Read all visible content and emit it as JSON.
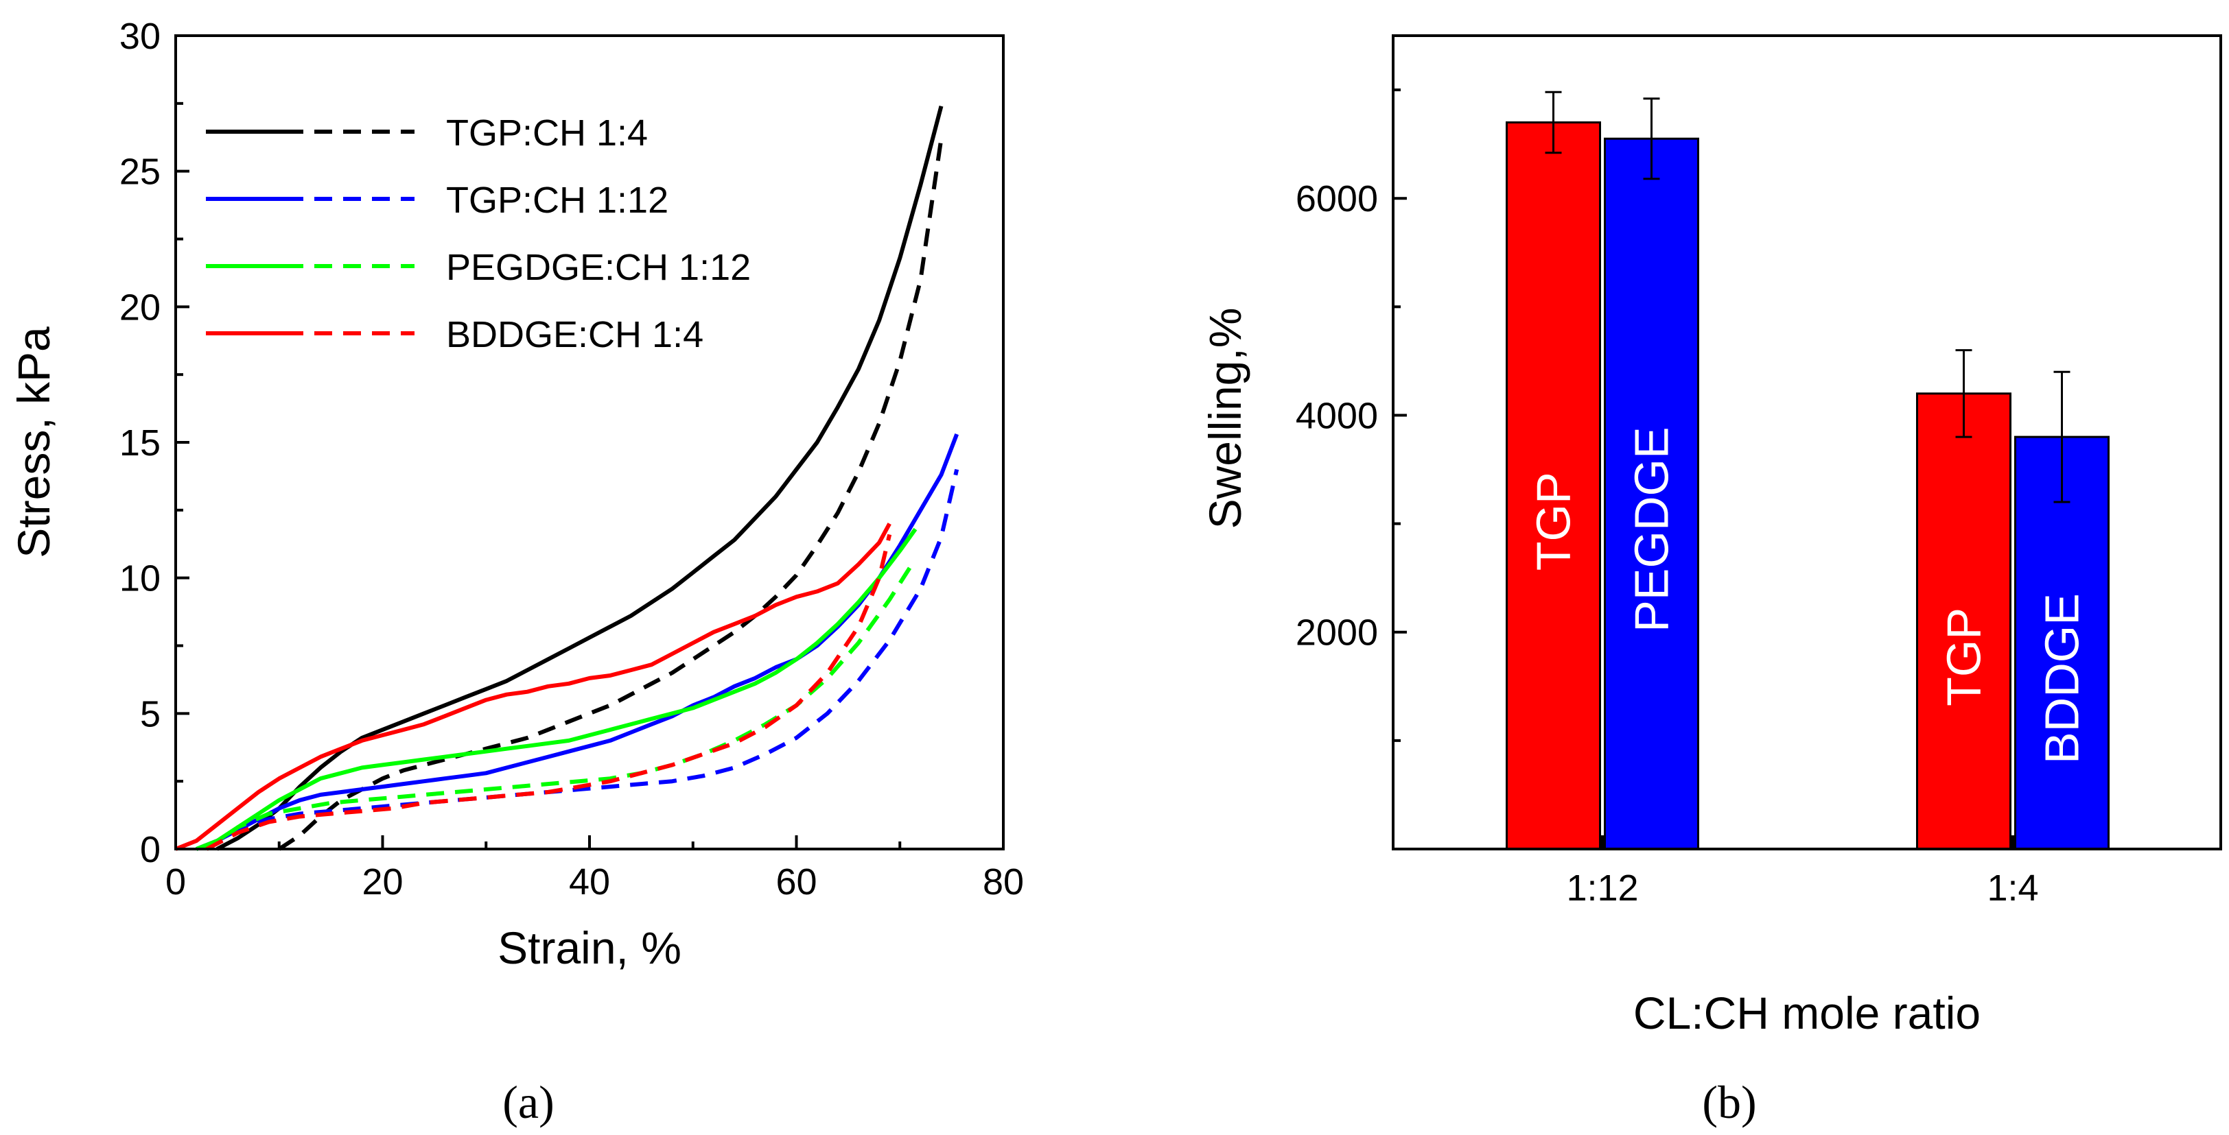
{
  "chart_data": [
    {
      "type": "line",
      "panel_label": "(a)",
      "xlabel": "Strain, %",
      "ylabel": "Stress, kPa",
      "xlim": [
        0,
        80
      ],
      "ylim": [
        0,
        30
      ],
      "xticks": [
        0,
        20,
        40,
        60,
        80
      ],
      "yticks": [
        0,
        5,
        10,
        15,
        20,
        25,
        30
      ],
      "grid": false,
      "legend_position": "top-left",
      "series": [
        {
          "name": "TGP:CH 1:4",
          "style": "solid",
          "color": "#000000",
          "points": [
            [
              4,
              0
            ],
            [
              6,
              0.4
            ],
            [
              8,
              0.9
            ],
            [
              10,
              1.5
            ],
            [
              12,
              2.3
            ],
            [
              14,
              3.0
            ],
            [
              16,
              3.6
            ],
            [
              18,
              4.1
            ],
            [
              20,
              4.4
            ],
            [
              22,
              4.7
            ],
            [
              24,
              5.0
            ],
            [
              26,
              5.3
            ],
            [
              28,
              5.6
            ],
            [
              30,
              5.9
            ],
            [
              32,
              6.2
            ],
            [
              34,
              6.6
            ],
            [
              36,
              7.0
            ],
            [
              38,
              7.4
            ],
            [
              40,
              7.8
            ],
            [
              42,
              8.2
            ],
            [
              44,
              8.6
            ],
            [
              46,
              9.1
            ],
            [
              48,
              9.6
            ],
            [
              50,
              10.2
            ],
            [
              52,
              10.8
            ],
            [
              54,
              11.4
            ],
            [
              56,
              12.2
            ],
            [
              58,
              13.0
            ],
            [
              60,
              14.0
            ],
            [
              62,
              15.0
            ],
            [
              64,
              16.3
            ],
            [
              66,
              17.7
            ],
            [
              68,
              19.5
            ],
            [
              70,
              21.8
            ],
            [
              72,
              24.5
            ],
            [
              74,
              27.4
            ]
          ]
        },
        {
          "name": "TGP:CH 1:4",
          "style": "dashed",
          "color": "#000000",
          "points": [
            [
              10,
              0
            ],
            [
              12,
              0.5
            ],
            [
              14,
              1.2
            ],
            [
              16,
              1.8
            ],
            [
              18,
              2.2
            ],
            [
              20,
              2.6
            ],
            [
              22,
              2.9
            ],
            [
              24,
              3.1
            ],
            [
              26,
              3.3
            ],
            [
              28,
              3.5
            ],
            [
              30,
              3.7
            ],
            [
              32,
              3.9
            ],
            [
              34,
              4.1
            ],
            [
              36,
              4.4
            ],
            [
              38,
              4.7
            ],
            [
              40,
              5.0
            ],
            [
              42,
              5.3
            ],
            [
              44,
              5.7
            ],
            [
              46,
              6.1
            ],
            [
              48,
              6.5
            ],
            [
              50,
              7.0
            ],
            [
              52,
              7.5
            ],
            [
              54,
              8.0
            ],
            [
              56,
              8.6
            ],
            [
              58,
              9.3
            ],
            [
              60,
              10.1
            ],
            [
              62,
              11.2
            ],
            [
              64,
              12.4
            ],
            [
              66,
              13.9
            ],
            [
              68,
              15.7
            ],
            [
              70,
              18.0
            ],
            [
              72,
              21.0
            ],
            [
              74,
              26.2
            ]
          ]
        },
        {
          "name": "TGP:CH 1:12",
          "style": "solid",
          "color": "#0000ff",
          "points": [
            [
              2,
              0
            ],
            [
              4,
              0.3
            ],
            [
              6,
              0.7
            ],
            [
              8,
              1.1
            ],
            [
              10,
              1.5
            ],
            [
              12,
              1.8
            ],
            [
              14,
              2.0
            ],
            [
              16,
              2.1
            ],
            [
              18,
              2.2
            ],
            [
              20,
              2.3
            ],
            [
              22,
              2.4
            ],
            [
              24,
              2.5
            ],
            [
              26,
              2.6
            ],
            [
              28,
              2.7
            ],
            [
              30,
              2.8
            ],
            [
              32,
              3.0
            ],
            [
              34,
              3.2
            ],
            [
              36,
              3.4
            ],
            [
              38,
              3.6
            ],
            [
              40,
              3.8
            ],
            [
              42,
              4.0
            ],
            [
              44,
              4.3
            ],
            [
              46,
              4.6
            ],
            [
              48,
              4.9
            ],
            [
              50,
              5.3
            ],
            [
              52,
              5.6
            ],
            [
              54,
              6.0
            ],
            [
              56,
              6.3
            ],
            [
              58,
              6.7
            ],
            [
              60,
              7.0
            ],
            [
              62,
              7.5
            ],
            [
              64,
              8.2
            ],
            [
              66,
              9.0
            ],
            [
              68,
              10.0
            ],
            [
              70,
              11.2
            ],
            [
              72,
              12.5
            ],
            [
              74,
              13.8
            ],
            [
              75.5,
              15.3
            ]
          ]
        },
        {
          "name": "TGP:CH 1:12",
          "style": "dashed",
          "color": "#0000ff",
          "points": [
            [
              3,
              0
            ],
            [
              6,
              0.7
            ],
            [
              9,
              1.1
            ],
            [
              12,
              1.3
            ],
            [
              15,
              1.4
            ],
            [
              18,
              1.5
            ],
            [
              21,
              1.6
            ],
            [
              24,
              1.7
            ],
            [
              27,
              1.8
            ],
            [
              30,
              1.9
            ],
            [
              33,
              2.0
            ],
            [
              36,
              2.1
            ],
            [
              39,
              2.2
            ],
            [
              42,
              2.3
            ],
            [
              45,
              2.4
            ],
            [
              48,
              2.5
            ],
            [
              51,
              2.7
            ],
            [
              54,
              3.0
            ],
            [
              57,
              3.5
            ],
            [
              60,
              4.1
            ],
            [
              63,
              5.0
            ],
            [
              66,
              6.2
            ],
            [
              69,
              7.7
            ],
            [
              72,
              9.6
            ],
            [
              74,
              11.5
            ],
            [
              75.5,
              14.0
            ]
          ]
        },
        {
          "name": "PEGDGE:CH 1:12",
          "style": "solid",
          "color": "#00ff00",
          "points": [
            [
              2,
              0
            ],
            [
              4,
              0.3
            ],
            [
              6,
              0.8
            ],
            [
              8,
              1.3
            ],
            [
              10,
              1.8
            ],
            [
              12,
              2.2
            ],
            [
              14,
              2.6
            ],
            [
              16,
              2.8
            ],
            [
              18,
              3.0
            ],
            [
              20,
              3.1
            ],
            [
              22,
              3.2
            ],
            [
              24,
              3.3
            ],
            [
              26,
              3.4
            ],
            [
              28,
              3.5
            ],
            [
              30,
              3.6
            ],
            [
              32,
              3.7
            ],
            [
              34,
              3.8
            ],
            [
              36,
              3.9
            ],
            [
              38,
              4.0
            ],
            [
              40,
              4.2
            ],
            [
              42,
              4.4
            ],
            [
              44,
              4.6
            ],
            [
              46,
              4.8
            ],
            [
              48,
              5.0
            ],
            [
              50,
              5.2
            ],
            [
              52,
              5.5
            ],
            [
              54,
              5.8
            ],
            [
              56,
              6.1
            ],
            [
              58,
              6.5
            ],
            [
              60,
              7.0
            ],
            [
              62,
              7.6
            ],
            [
              64,
              8.3
            ],
            [
              66,
              9.1
            ],
            [
              68,
              10.0
            ],
            [
              70,
              11.0
            ],
            [
              71.5,
              11.8
            ]
          ]
        },
        {
          "name": "PEGDGE:CH 1:12",
          "style": "dashed",
          "color": "#00ff00",
          "points": [
            [
              3,
              0
            ],
            [
              6,
              0.8
            ],
            [
              9,
              1.3
            ],
            [
              12,
              1.5
            ],
            [
              15,
              1.7
            ],
            [
              18,
              1.8
            ],
            [
              21,
              1.9
            ],
            [
              24,
              2.0
            ],
            [
              27,
              2.1
            ],
            [
              30,
              2.2
            ],
            [
              33,
              2.3
            ],
            [
              36,
              2.4
            ],
            [
              39,
              2.5
            ],
            [
              42,
              2.6
            ],
            [
              45,
              2.8
            ],
            [
              48,
              3.1
            ],
            [
              51,
              3.5
            ],
            [
              54,
              4.0
            ],
            [
              57,
              4.6
            ],
            [
              60,
              5.3
            ],
            [
              63,
              6.3
            ],
            [
              66,
              7.6
            ],
            [
              69,
              9.2
            ],
            [
              71,
              10.4
            ]
          ]
        },
        {
          "name": "BDDGE:CH 1:4",
          "style": "solid",
          "color": "#ff0000",
          "points": [
            [
              0,
              0
            ],
            [
              2,
              0.3
            ],
            [
              4,
              0.9
            ],
            [
              6,
              1.5
            ],
            [
              8,
              2.1
            ],
            [
              10,
              2.6
            ],
            [
              12,
              3.0
            ],
            [
              14,
              3.4
            ],
            [
              16,
              3.7
            ],
            [
              18,
              4.0
            ],
            [
              20,
              4.2
            ],
            [
              22,
              4.4
            ],
            [
              24,
              4.6
            ],
            [
              26,
              4.9
            ],
            [
              28,
              5.2
            ],
            [
              30,
              5.5
            ],
            [
              32,
              5.7
            ],
            [
              34,
              5.8
            ],
            [
              36,
              6.0
            ],
            [
              38,
              6.1
            ],
            [
              40,
              6.3
            ],
            [
              42,
              6.4
            ],
            [
              44,
              6.6
            ],
            [
              46,
              6.8
            ],
            [
              48,
              7.2
            ],
            [
              50,
              7.6
            ],
            [
              52,
              8.0
            ],
            [
              54,
              8.3
            ],
            [
              56,
              8.6
            ],
            [
              58,
              9.0
            ],
            [
              60,
              9.3
            ],
            [
              62,
              9.5
            ],
            [
              64,
              9.8
            ],
            [
              66,
              10.5
            ],
            [
              68,
              11.3
            ],
            [
              69,
              12.0
            ]
          ]
        },
        {
          "name": "BDDGE:CH 1:4",
          "style": "dashed",
          "color": "#ff0000",
          "points": [
            [
              3,
              0
            ],
            [
              6,
              0.6
            ],
            [
              9,
              1.0
            ],
            [
              12,
              1.2
            ],
            [
              15,
              1.3
            ],
            [
              18,
              1.4
            ],
            [
              21,
              1.5
            ],
            [
              24,
              1.7
            ],
            [
              27,
              1.8
            ],
            [
              30,
              1.9
            ],
            [
              33,
              2.0
            ],
            [
              36,
              2.1
            ],
            [
              39,
              2.3
            ],
            [
              42,
              2.5
            ],
            [
              45,
              2.8
            ],
            [
              48,
              3.1
            ],
            [
              51,
              3.5
            ],
            [
              54,
              3.9
            ],
            [
              57,
              4.5
            ],
            [
              60,
              5.3
            ],
            [
              63,
              6.5
            ],
            [
              66,
              8.2
            ],
            [
              68,
              10.0
            ],
            [
              69,
              11.6
            ]
          ]
        }
      ],
      "legend": [
        {
          "label": "TGP:CH 1:4",
          "color": "#000000"
        },
        {
          "label": "TGP:CH 1:12",
          "color": "#0000ff"
        },
        {
          "label": "PEGDGE:CH 1:12",
          "color": "#00ff00"
        },
        {
          "label": "BDDGE:CH 1:4",
          "color": "#ff0000"
        }
      ]
    },
    {
      "type": "bar",
      "panel_label": "(b)",
      "xlabel": "CL:CH mole ratio",
      "ylabel": "Swelling,%",
      "categories": [
        "1:12",
        "1:4"
      ],
      "ylim": [
        0,
        7500
      ],
      "yticks": [
        2000,
        4000,
        6000
      ],
      "grid": false,
      "bars": [
        {
          "category": "1:12",
          "label": "TGP",
          "value": 6700,
          "error": 280,
          "color": "#ff0000"
        },
        {
          "category": "1:12",
          "label": "PEGDGE",
          "value": 6550,
          "error": 370,
          "color": "#0000ff"
        },
        {
          "category": "1:4",
          "label": "TGP",
          "value": 4200,
          "error": 400,
          "color": "#ff0000"
        },
        {
          "category": "1:4",
          "label": "BDDGE",
          "value": 3800,
          "error": 600,
          "color": "#0000ff"
        }
      ]
    }
  ]
}
